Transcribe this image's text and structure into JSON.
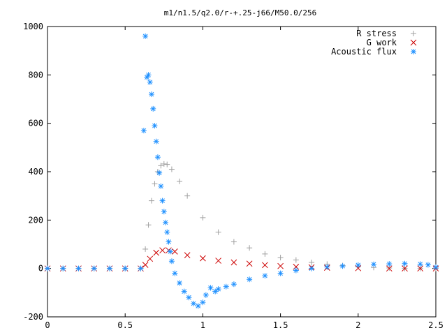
{
  "chart_data": {
    "type": "scatter",
    "title": "m1/n1.5/q2.0/r-+.25-j66/M50.0/256",
    "xlabel": "",
    "ylabel": "",
    "xlim": [
      0,
      2.5
    ],
    "ylim": [
      -200,
      1000
    ],
    "x_ticks": [
      0,
      0.5,
      1,
      1.5,
      2,
      2.5
    ],
    "x_tick_labels": [
      "0",
      "0.5",
      "1",
      "1.5",
      "2",
      "2.5"
    ],
    "y_ticks": [
      -200,
      0,
      200,
      400,
      600,
      800,
      1000
    ],
    "y_tick_labels": [
      "-200",
      "0",
      "200",
      "400",
      "600",
      "800",
      "1000"
    ],
    "grid": false,
    "legend_position": "top-right",
    "series": [
      {
        "name": "R stress",
        "marker": "plus",
        "color": "#a0a0a0",
        "points": [
          [
            0,
            0
          ],
          [
            0.1,
            0
          ],
          [
            0.2,
            0
          ],
          [
            0.3,
            0
          ],
          [
            0.4,
            0
          ],
          [
            0.5,
            0
          ],
          [
            0.6,
            0
          ],
          [
            0.63,
            80
          ],
          [
            0.65,
            180
          ],
          [
            0.67,
            280
          ],
          [
            0.69,
            350
          ],
          [
            0.71,
            400
          ],
          [
            0.73,
            425
          ],
          [
            0.75,
            432
          ],
          [
            0.77,
            430
          ],
          [
            0.8,
            410
          ],
          [
            0.85,
            360
          ],
          [
            0.9,
            300
          ],
          [
            1.0,
            210
          ],
          [
            1.1,
            150
          ],
          [
            1.2,
            110
          ],
          [
            1.3,
            85
          ],
          [
            1.4,
            60
          ],
          [
            1.5,
            45
          ],
          [
            1.6,
            35
          ],
          [
            1.7,
            25
          ],
          [
            1.8,
            18
          ],
          [
            1.9,
            12
          ],
          [
            2.0,
            8
          ],
          [
            2.1,
            4
          ],
          [
            2.2,
            2
          ],
          [
            2.3,
            0
          ],
          [
            2.4,
            0
          ],
          [
            2.5,
            0
          ]
        ]
      },
      {
        "name": "G work",
        "marker": "cross",
        "color": "#cc0000",
        "points": [
          [
            0,
            0
          ],
          [
            0.1,
            0
          ],
          [
            0.2,
            0
          ],
          [
            0.3,
            0
          ],
          [
            0.4,
            0
          ],
          [
            0.5,
            0
          ],
          [
            0.6,
            0
          ],
          [
            0.63,
            15
          ],
          [
            0.66,
            40
          ],
          [
            0.7,
            65
          ],
          [
            0.74,
            75
          ],
          [
            0.78,
            75
          ],
          [
            0.82,
            70
          ],
          [
            0.9,
            55
          ],
          [
            1.0,
            42
          ],
          [
            1.1,
            32
          ],
          [
            1.2,
            25
          ],
          [
            1.3,
            20
          ],
          [
            1.4,
            14
          ],
          [
            1.5,
            10
          ],
          [
            1.6,
            7
          ],
          [
            1.7,
            5
          ],
          [
            1.8,
            3
          ],
          [
            2.0,
            1
          ],
          [
            2.2,
            0
          ],
          [
            2.3,
            0
          ],
          [
            2.4,
            0
          ],
          [
            2.5,
            0
          ]
        ]
      },
      {
        "name": "Acoustic flux",
        "marker": "star",
        "color": "#1e90ff",
        "points": [
          [
            0,
            0
          ],
          [
            0.1,
            0
          ],
          [
            0.2,
            0
          ],
          [
            0.3,
            0
          ],
          [
            0.4,
            0
          ],
          [
            0.5,
            0
          ],
          [
            0.6,
            0
          ],
          [
            0.62,
            570
          ],
          [
            0.63,
            960
          ],
          [
            0.64,
            790
          ],
          [
            0.65,
            800
          ],
          [
            0.66,
            770
          ],
          [
            0.67,
            720
          ],
          [
            0.68,
            660
          ],
          [
            0.69,
            590
          ],
          [
            0.7,
            525
          ],
          [
            0.71,
            460
          ],
          [
            0.72,
            395
          ],
          [
            0.73,
            340
          ],
          [
            0.74,
            280
          ],
          [
            0.75,
            235
          ],
          [
            0.76,
            190
          ],
          [
            0.77,
            150
          ],
          [
            0.78,
            110
          ],
          [
            0.79,
            70
          ],
          [
            0.8,
            30
          ],
          [
            0.82,
            -20
          ],
          [
            0.85,
            -60
          ],
          [
            0.88,
            -95
          ],
          [
            0.91,
            -120
          ],
          [
            0.94,
            -145
          ],
          [
            0.97,
            -155
          ],
          [
            1.0,
            -140
          ],
          [
            1.02,
            -110
          ],
          [
            1.05,
            -80
          ],
          [
            1.08,
            -95
          ],
          [
            1.1,
            -85
          ],
          [
            1.15,
            -75
          ],
          [
            1.2,
            -65
          ],
          [
            1.3,
            -45
          ],
          [
            1.4,
            -30
          ],
          [
            1.5,
            -20
          ],
          [
            1.6,
            -8
          ],
          [
            1.7,
            0
          ],
          [
            1.8,
            6
          ],
          [
            1.9,
            10
          ],
          [
            2.0,
            14
          ],
          [
            2.1,
            17
          ],
          [
            2.2,
            19
          ],
          [
            2.3,
            20
          ],
          [
            2.4,
            18
          ],
          [
            2.45,
            15
          ],
          [
            2.5,
            5
          ]
        ]
      }
    ]
  }
}
